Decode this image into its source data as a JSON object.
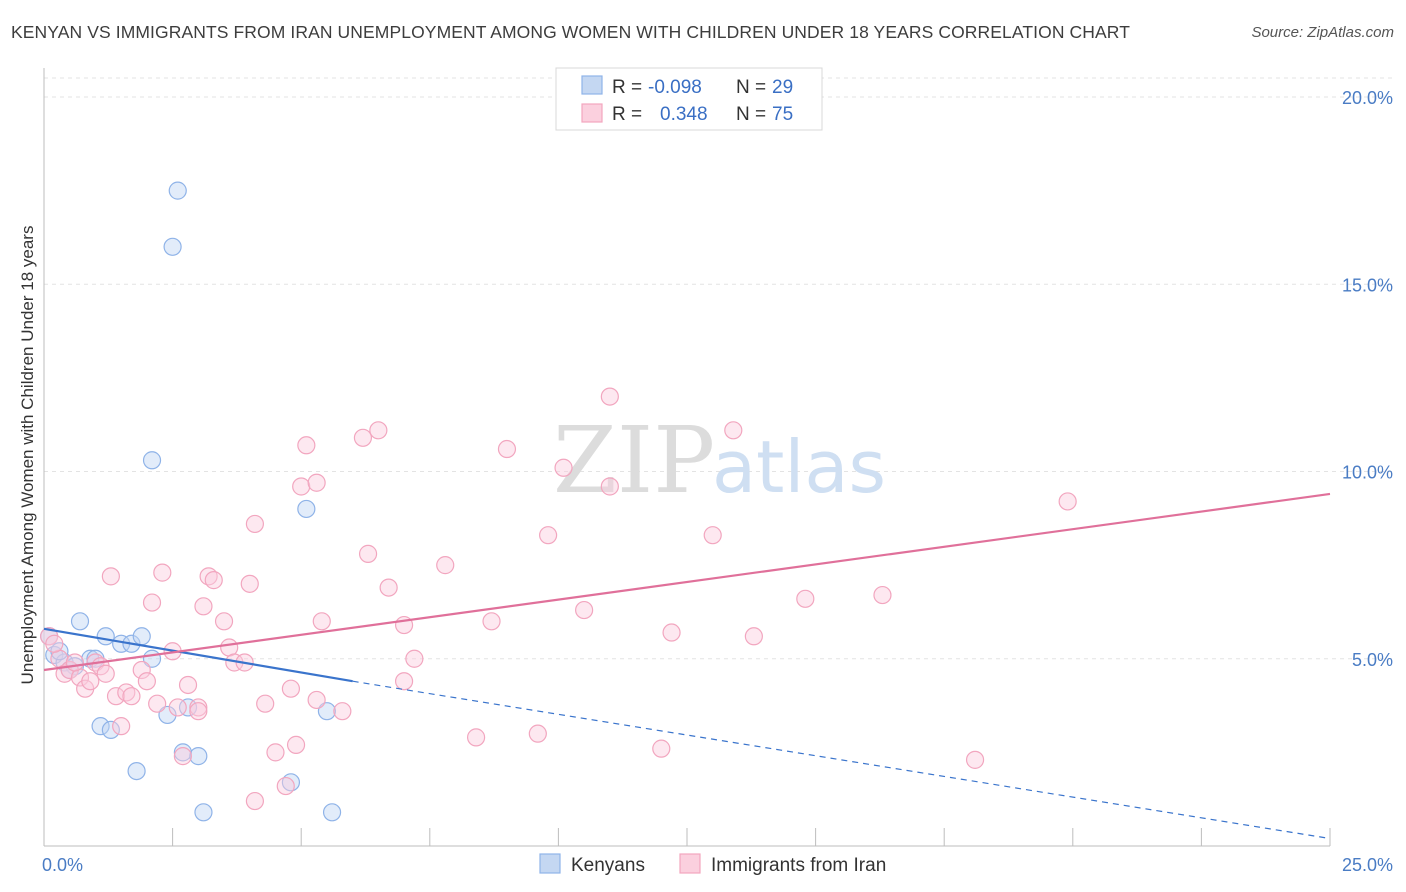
{
  "title": "KENYAN VS IMMIGRANTS FROM IRAN UNEMPLOYMENT AMONG WOMEN WITH CHILDREN UNDER 18 YEARS CORRELATION CHART",
  "source": "Source: ZipAtlas.com",
  "watermark": {
    "zip": "ZIP",
    "atlas": "atlas"
  },
  "colors": {
    "kenyans": "#8fb3e8",
    "kenyans_line": "#3a74cc",
    "iran": "#f2a6bf",
    "iran_line": "#e0709a",
    "tick_text": "#4a7cc4",
    "grid": "#e3e3e3"
  },
  "legend": {
    "rows": [
      {
        "r_label": "R =",
        "r_value": "-0.098",
        "n_label": "N =",
        "n_value": "29"
      },
      {
        "r_label": "R =",
        "r_value": "0.348",
        "n_label": "N =",
        "n_value": "75"
      }
    ]
  },
  "chart_data": {
    "type": "scatter",
    "xlabel": "",
    "ylabel": "Unemployment Among Women with Children Under 18 years",
    "xlim": [
      0,
      25
    ],
    "ylim": [
      0,
      20
    ],
    "x_ticks": [
      {
        "value": 0,
        "label": "0.0%"
      },
      {
        "value": 25,
        "label": "25.0%"
      }
    ],
    "y_ticks": [
      {
        "value": 5,
        "label": "5.0%"
      },
      {
        "value": 10,
        "label": "10.0%"
      },
      {
        "value": 15,
        "label": "15.0%"
      },
      {
        "value": 20,
        "label": "20.0%"
      }
    ],
    "grid": true,
    "series": [
      {
        "name": "Kenyans",
        "points": [
          [
            0.1,
            5.6
          ],
          [
            0.2,
            5.1
          ],
          [
            0.4,
            4.9
          ],
          [
            0.6,
            4.8
          ],
          [
            0.7,
            6.0
          ],
          [
            0.9,
            5.0
          ],
          [
            1.0,
            5.0
          ],
          [
            1.1,
            3.2
          ],
          [
            1.2,
            5.6
          ],
          [
            1.3,
            3.1
          ],
          [
            1.5,
            5.4
          ],
          [
            1.7,
            5.4
          ],
          [
            1.8,
            2.0
          ],
          [
            1.9,
            5.6
          ],
          [
            2.1,
            5.0
          ],
          [
            2.1,
            10.3
          ],
          [
            2.4,
            3.5
          ],
          [
            2.5,
            16.0
          ],
          [
            2.6,
            17.5
          ],
          [
            2.7,
            2.5
          ],
          [
            2.8,
            3.7
          ],
          [
            3.0,
            2.4
          ],
          [
            3.1,
            0.9
          ],
          [
            4.8,
            1.7
          ],
          [
            5.1,
            9.0
          ],
          [
            5.5,
            3.6
          ],
          [
            5.6,
            0.9
          ],
          [
            0.3,
            5.2
          ],
          [
            0.5,
            4.7
          ]
        ],
        "trend": {
          "x0": 0,
          "y0": 5.8,
          "x1": 6,
          "y1": 4.4,
          "dashed_to_x": 25,
          "dashed_to_y": 0.2
        }
      },
      {
        "name": "Immigrants from Iran",
        "points": [
          [
            0.1,
            5.6
          ],
          [
            0.3,
            5.0
          ],
          [
            0.4,
            4.6
          ],
          [
            0.5,
            4.7
          ],
          [
            0.7,
            4.5
          ],
          [
            0.8,
            4.2
          ],
          [
            0.9,
            4.4
          ],
          [
            1.0,
            4.9
          ],
          [
            1.1,
            4.8
          ],
          [
            1.2,
            4.6
          ],
          [
            1.3,
            7.2
          ],
          [
            1.4,
            4.0
          ],
          [
            1.5,
            3.2
          ],
          [
            1.6,
            4.1
          ],
          [
            1.7,
            4.0
          ],
          [
            1.9,
            4.7
          ],
          [
            2.0,
            4.4
          ],
          [
            2.1,
            6.5
          ],
          [
            2.2,
            3.8
          ],
          [
            2.3,
            7.3
          ],
          [
            2.5,
            5.2
          ],
          [
            2.6,
            3.7
          ],
          [
            2.7,
            2.4
          ],
          [
            2.8,
            4.3
          ],
          [
            3.0,
            3.7
          ],
          [
            3.0,
            3.6
          ],
          [
            3.1,
            6.4
          ],
          [
            3.2,
            7.2
          ],
          [
            3.3,
            7.1
          ],
          [
            3.5,
            6.0
          ],
          [
            3.6,
            5.3
          ],
          [
            3.7,
            4.9
          ],
          [
            3.9,
            4.9
          ],
          [
            4.0,
            7.0
          ],
          [
            4.1,
            1.2
          ],
          [
            4.1,
            8.6
          ],
          [
            4.3,
            3.8
          ],
          [
            4.5,
            2.5
          ],
          [
            4.7,
            1.6
          ],
          [
            4.8,
            4.2
          ],
          [
            4.9,
            2.7
          ],
          [
            5.0,
            9.6
          ],
          [
            5.1,
            10.7
          ],
          [
            5.3,
            9.7
          ],
          [
            5.3,
            3.9
          ],
          [
            5.4,
            6.0
          ],
          [
            5.8,
            3.6
          ],
          [
            6.2,
            10.9
          ],
          [
            6.3,
            7.8
          ],
          [
            6.5,
            11.1
          ],
          [
            6.7,
            6.9
          ],
          [
            7.0,
            5.9
          ],
          [
            7.0,
            4.4
          ],
          [
            7.2,
            5.0
          ],
          [
            7.8,
            7.5
          ],
          [
            8.4,
            2.9
          ],
          [
            8.7,
            6.0
          ],
          [
            9.0,
            10.6
          ],
          [
            9.6,
            3.0
          ],
          [
            9.8,
            8.3
          ],
          [
            10.1,
            10.1
          ],
          [
            10.5,
            6.3
          ],
          [
            11.0,
            9.6
          ],
          [
            11.0,
            12.0
          ],
          [
            12.0,
            2.6
          ],
          [
            12.2,
            5.7
          ],
          [
            13.0,
            8.3
          ],
          [
            13.4,
            11.1
          ],
          [
            13.8,
            5.6
          ],
          [
            14.8,
            6.6
          ],
          [
            16.3,
            6.7
          ],
          [
            18.1,
            2.3
          ],
          [
            19.9,
            9.2
          ],
          [
            0.2,
            5.4
          ],
          [
            0.6,
            4.9
          ]
        ],
        "trend": {
          "x0": 0,
          "y0": 4.7,
          "x1": 25,
          "y1": 9.4
        }
      }
    ],
    "legend_position": "top-center"
  }
}
